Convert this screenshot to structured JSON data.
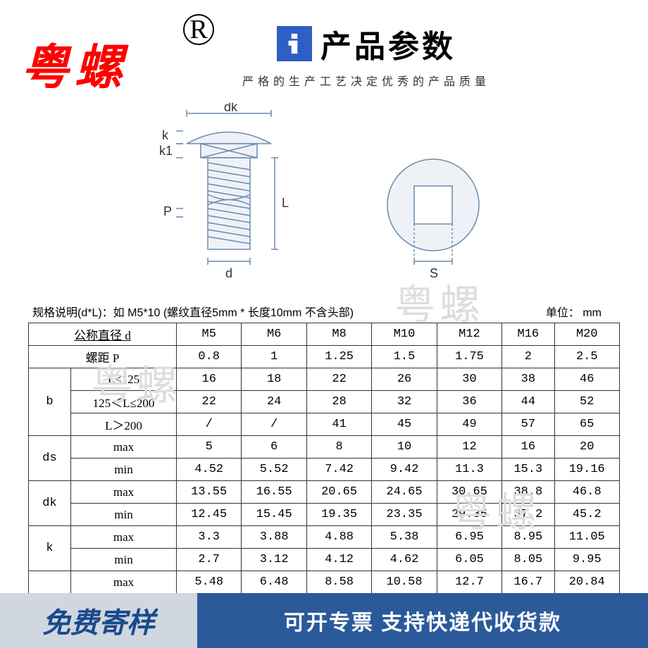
{
  "brand": "粤螺",
  "registered": "R",
  "title": "产品参数",
  "subtitle": "严格的生产工艺决定优秀的产品质量",
  "watermark": "粤螺",
  "diagram_labels": {
    "dk": "dk",
    "k": "k",
    "k1": "k1",
    "P": "P",
    "L": "L",
    "d": "d",
    "S": "S"
  },
  "spec_note": "规格说明(d*L)：如 M5*10  (螺纹直径5mm * 长度10mm 不含头部)",
  "unit_label": "单位：   mm",
  "table": {
    "header_diameter": "公称直径   d",
    "header_pitch": "螺距   P",
    "sizes": [
      "M5",
      "M6",
      "M8",
      "M10",
      "M12",
      "M16",
      "M20"
    ],
    "pitch": [
      "0.8",
      "1",
      "1.25",
      "1.5",
      "1.75",
      "2",
      "2.5"
    ],
    "groups": [
      {
        "label": "b",
        "rows": [
          {
            "sub": "L≤125",
            "v": [
              "16",
              "18",
              "22",
              "26",
              "30",
              "38",
              "46"
            ]
          },
          {
            "sub": "125＜L≤200",
            "v": [
              "22",
              "24",
              "28",
              "32",
              "36",
              "44",
              "52"
            ]
          },
          {
            "sub": "L＞200",
            "v": [
              "/",
              "/",
              "41",
              "45",
              "49",
              "57",
              "65"
            ]
          }
        ]
      },
      {
        "label": "ds",
        "rows": [
          {
            "sub": "max",
            "v": [
              "5",
              "6",
              "8",
              "10",
              "12",
              "16",
              "20"
            ]
          },
          {
            "sub": "min",
            "v": [
              "4.52",
              "5.52",
              "7.42",
              "9.42",
              "11.3",
              "15.3",
              "19.16"
            ]
          }
        ]
      },
      {
        "label": "dk",
        "rows": [
          {
            "sub": "max",
            "v": [
              "13.55",
              "16.55",
              "20.65",
              "24.65",
              "30.65",
              "38.8",
              "46.8"
            ]
          },
          {
            "sub": "min",
            "v": [
              "12.45",
              "15.45",
              "19.35",
              "23.35",
              "29.35",
              "37.2",
              "45.2"
            ]
          }
        ]
      },
      {
        "label": "k",
        "rows": [
          {
            "sub": "max",
            "v": [
              "3.3",
              "3.88",
              "4.88",
              "5.38",
              "6.95",
              "8.95",
              "11.05"
            ]
          },
          {
            "sub": "min",
            "v": [
              "2.7",
              "3.12",
              "4.12",
              "4.62",
              "6.05",
              "8.05",
              "9.95"
            ]
          }
        ]
      },
      {
        "label": "",
        "rows": [
          {
            "sub": "max",
            "v": [
              "5.48",
              "6.48",
              "8.58",
              "10.58",
              "12.7",
              "16.7",
              "20.84"
            ]
          }
        ]
      }
    ]
  },
  "footer": {
    "left": "免费寄样",
    "right": "可开专票 支持快递代收货款"
  }
}
